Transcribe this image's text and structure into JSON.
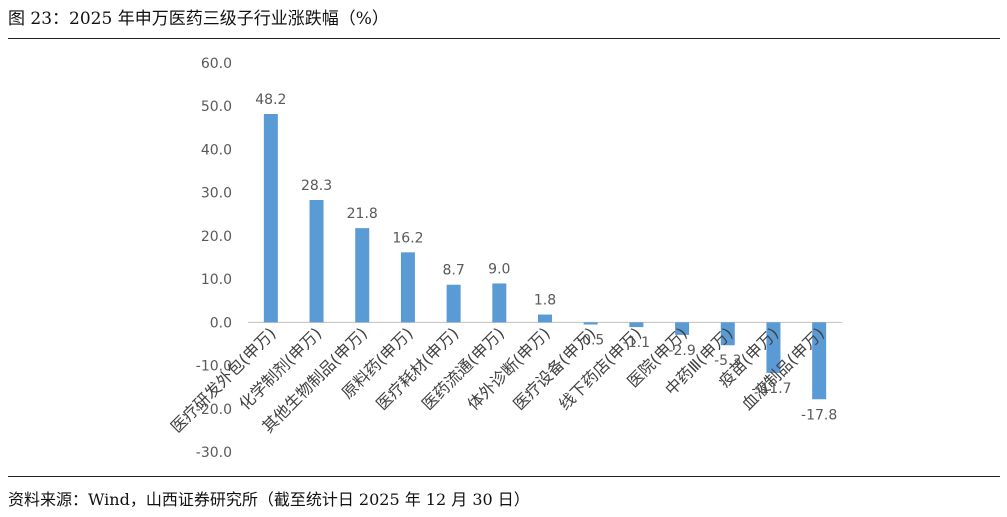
{
  "figure": {
    "title": "图 23：2025 年申万医药三级子行业涨跌幅（%）",
    "source": "资料来源：Wind，山西证券研究所（截至统计日 2025 年 12 月 30 日）"
  },
  "colors": {
    "bar": "#5b9bd5",
    "axis": "#bfbfbf",
    "text": "#595959"
  },
  "chart_data": {
    "type": "bar",
    "title": "",
    "xlabel": "",
    "ylabel": "",
    "ylim": [
      -30,
      60
    ],
    "yticks": [
      -30,
      -20,
      -10,
      0,
      10,
      20,
      30,
      40,
      50,
      60
    ],
    "ytick_labels": [
      "-30.0",
      "-20.0",
      "-10.0",
      "0.0",
      "10.0",
      "20.0",
      "30.0",
      "40.0",
      "50.0",
      "60.0"
    ],
    "grid": false,
    "legend": "none",
    "categories": [
      "医疗研发外包(申万)",
      "化学制剂(申万)",
      "其他生物制品(申万)",
      "原料药(申万)",
      "医疗耗材(申万)",
      "医药流通(申万)",
      "体外诊断(申万)",
      "医疗设备(申万)",
      "线下药店(申万)",
      "医院(申万)",
      "中药Ⅲ(申万)",
      "疫苗(申万)",
      "血液制品(申万)"
    ],
    "values": [
      48.2,
      28.3,
      21.8,
      16.2,
      8.7,
      9.0,
      1.8,
      -0.5,
      -1.1,
      -2.9,
      -5.3,
      -11.7,
      -17.8
    ],
    "data_labels": [
      "48.2",
      "28.3",
      "21.8",
      "16.2",
      "8.7",
      "9.0",
      "1.8",
      "-0.5",
      "-1.1",
      "-2.9",
      "-5.3",
      "-11.7",
      "-17.8"
    ]
  }
}
